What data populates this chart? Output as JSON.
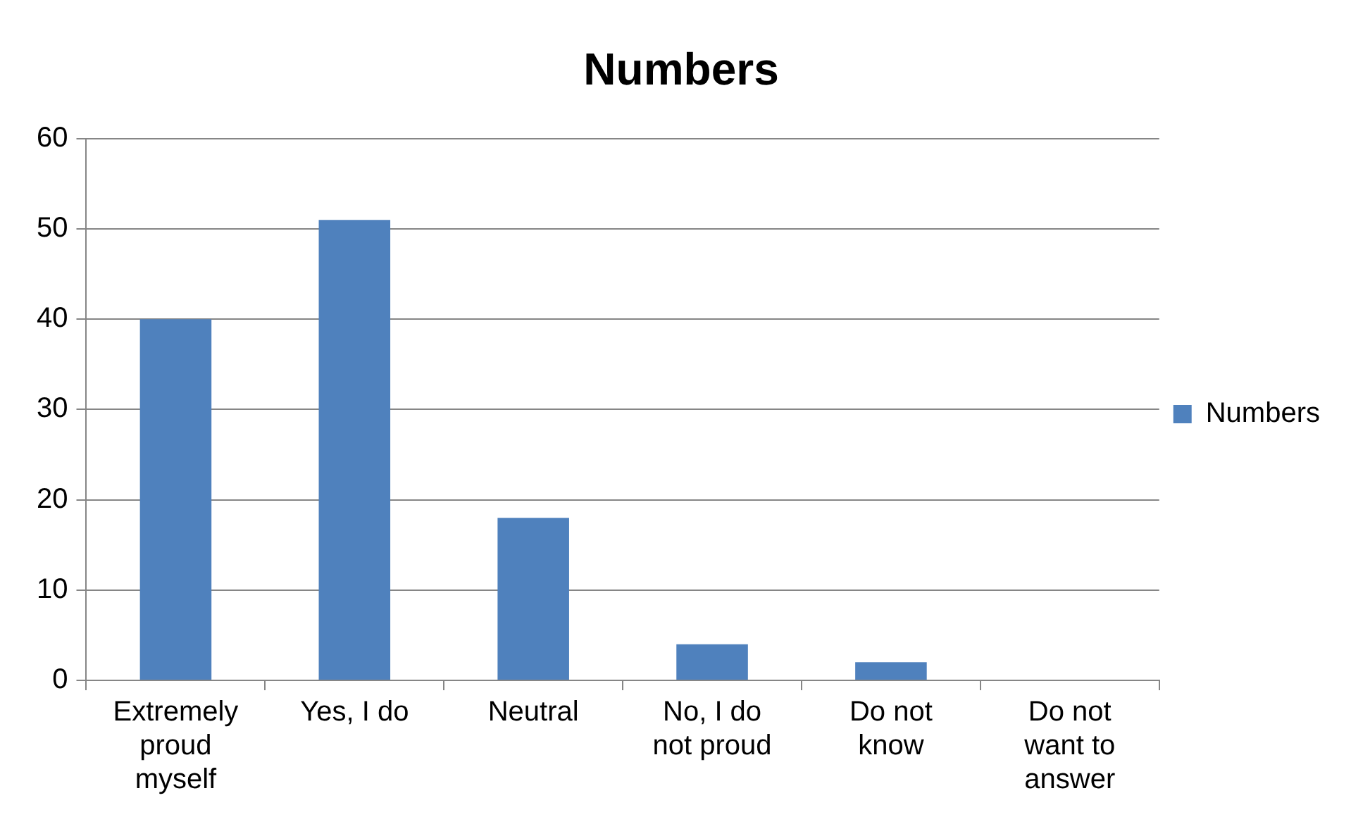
{
  "chart_data": {
    "type": "bar",
    "title": "Numbers",
    "categories": [
      "Extremely proud myself",
      "Yes, I do",
      "Neutral",
      "No, I do not proud",
      "Do not know",
      "Do not want to answer"
    ],
    "series": [
      {
        "name": "Numbers",
        "color": "#4f81bd",
        "values": [
          40,
          51,
          18,
          4,
          2,
          0
        ]
      }
    ],
    "ylim": [
      0,
      60
    ],
    "yticks": [
      0,
      10,
      20,
      30,
      40,
      50,
      60
    ],
    "grid": "y",
    "legend": "right"
  }
}
